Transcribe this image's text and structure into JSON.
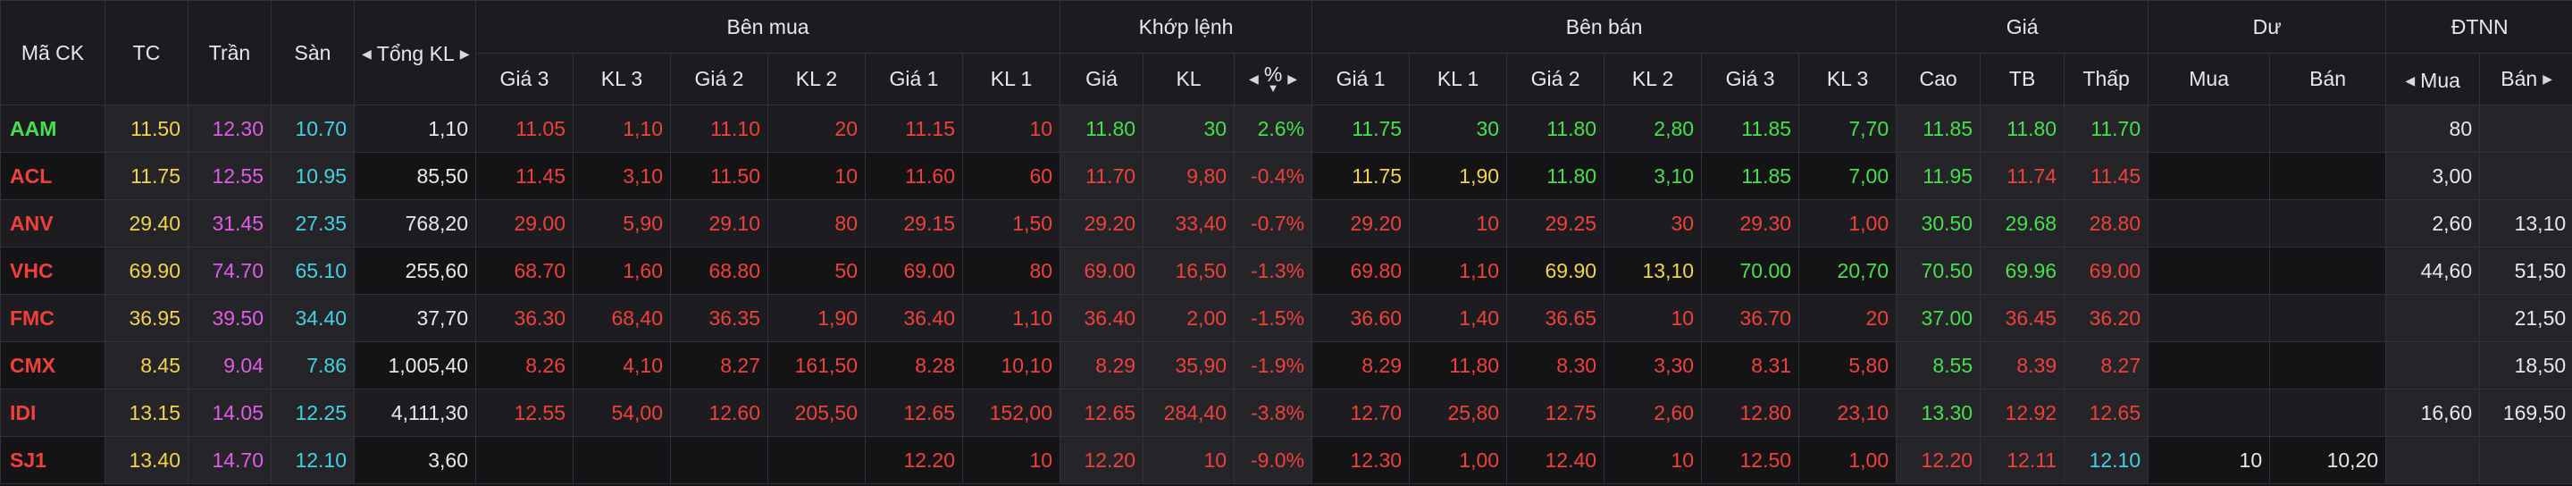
{
  "header": {
    "symbol": "Mã CK",
    "ref": "TC",
    "ceil": "Trần",
    "floor": "Sàn",
    "total_vol": "Tổng KL",
    "groups": {
      "buy": "Bên mua",
      "match": "Khớp lệnh",
      "sell": "Bên bán",
      "price": "Giá",
      "remain": "Dư",
      "foreign": "ĐTNN"
    },
    "buy_cols": [
      "Giá 3",
      "KL 3",
      "Giá 2",
      "KL 2",
      "Giá 1",
      "KL 1"
    ],
    "match_cols": [
      "Giá",
      "KL",
      "%"
    ],
    "sell_cols": [
      "Giá 1",
      "KL 1",
      "Giá 2",
      "KL 2",
      "Giá 3",
      "KL 3"
    ],
    "price_cols": [
      "Cao",
      "TB",
      "Thấp"
    ],
    "remain_cols": [
      "Mua",
      "Bán"
    ],
    "foreign_cols": [
      "Mua",
      "Bán"
    ]
  },
  "colors": {
    "up": "#45e04b",
    "down": "#f0403a",
    "ref": "#f3d34a",
    "ceil": "#e35be6",
    "floor": "#3fd3e2",
    "neutral": "#e8e8ea"
  },
  "rows": [
    {
      "sym": "AAM",
      "sc": "up",
      "tc": "11.50",
      "tran": "12.30",
      "san": "10.70",
      "tkl": "1,10",
      "b3p": "11.05",
      "b3v": "1,10",
      "b2p": "11.10",
      "b2v": "20",
      "b1p": "11.15",
      "b1v": "10",
      "bc": "down",
      "mp": "11.80",
      "mv": "30",
      "mpct": "2.6%",
      "mc": "up",
      "s1p": "11.75",
      "s1v": "30",
      "s1c": "up",
      "s2p": "11.80",
      "s2v": "2,80",
      "s2c": "up",
      "s3p": "11.85",
      "s3v": "7,70",
      "s3c": "up",
      "cao": "11.85",
      "caoc": "up",
      "tb": "11.80",
      "tbc": "up",
      "thap": "11.70",
      "thapc": "up",
      "dm": "",
      "db": "",
      "fm": "80",
      "fb": ""
    },
    {
      "sym": "ACL",
      "sc": "down",
      "tc": "11.75",
      "tran": "12.55",
      "san": "10.95",
      "tkl": "85,50",
      "b3p": "11.45",
      "b3v": "3,10",
      "b2p": "11.50",
      "b2v": "10",
      "b1p": "11.60",
      "b1v": "60",
      "bc": "down",
      "mp": "11.70",
      "mv": "9,80",
      "mpct": "-0.4%",
      "mc": "down",
      "s1p": "11.75",
      "s1v": "1,90",
      "s1c": "ref",
      "s2p": "11.80",
      "s2v": "3,10",
      "s2c": "up",
      "s3p": "11.85",
      "s3v": "7,00",
      "s3c": "up",
      "cao": "11.95",
      "caoc": "up",
      "tb": "11.74",
      "tbc": "down",
      "thap": "11.45",
      "thapc": "down",
      "dm": "",
      "db": "",
      "fm": "3,00",
      "fb": ""
    },
    {
      "sym": "ANV",
      "sc": "down",
      "tc": "29.40",
      "tran": "31.45",
      "san": "27.35",
      "tkl": "768,20",
      "b3p": "29.00",
      "b3v": "5,90",
      "b2p": "29.10",
      "b2v": "80",
      "b1p": "29.15",
      "b1v": "1,50",
      "bc": "down",
      "mp": "29.20",
      "mv": "33,40",
      "mpct": "-0.7%",
      "mc": "down",
      "s1p": "29.20",
      "s1v": "10",
      "s1c": "down",
      "s2p": "29.25",
      "s2v": "30",
      "s2c": "down",
      "s3p": "29.30",
      "s3v": "1,00",
      "s3c": "down",
      "cao": "30.50",
      "caoc": "up",
      "tb": "29.68",
      "tbc": "up",
      "thap": "28.80",
      "thapc": "down",
      "dm": "",
      "db": "",
      "fm": "2,60",
      "fb": "13,10"
    },
    {
      "sym": "VHC",
      "sc": "down",
      "tc": "69.90",
      "tran": "74.70",
      "san": "65.10",
      "tkl": "255,60",
      "b3p": "68.70",
      "b3v": "1,60",
      "b2p": "68.80",
      "b2v": "50",
      "b1p": "69.00",
      "b1v": "80",
      "bc": "down",
      "mp": "69.00",
      "mv": "16,50",
      "mpct": "-1.3%",
      "mc": "down",
      "s1p": "69.80",
      "s1v": "1,10",
      "s1c": "down",
      "s2p": "69.90",
      "s2v": "13,10",
      "s2c": "ref",
      "s3p": "70.00",
      "s3v": "20,70",
      "s3c": "up",
      "cao": "70.50",
      "caoc": "up",
      "tb": "69.96",
      "tbc": "up",
      "thap": "69.00",
      "thapc": "down",
      "dm": "",
      "db": "",
      "fm": "44,60",
      "fb": "51,50"
    },
    {
      "sym": "FMC",
      "sc": "down",
      "tc": "36.95",
      "tran": "39.50",
      "san": "34.40",
      "tkl": "37,70",
      "b3p": "36.30",
      "b3v": "68,40",
      "b2p": "36.35",
      "b2v": "1,90",
      "b1p": "36.40",
      "b1v": "1,10",
      "bc": "down",
      "mp": "36.40",
      "mv": "2,00",
      "mpct": "-1.5%",
      "mc": "down",
      "s1p": "36.60",
      "s1v": "1,40",
      "s1c": "down",
      "s2p": "36.65",
      "s2v": "10",
      "s2c": "down",
      "s3p": "36.70",
      "s3v": "20",
      "s3c": "down",
      "cao": "37.00",
      "caoc": "up",
      "tb": "36.45",
      "tbc": "down",
      "thap": "36.20",
      "thapc": "down",
      "dm": "",
      "db": "",
      "fm": "",
      "fb": "21,50"
    },
    {
      "sym": "CMX",
      "sc": "down",
      "tc": "8.45",
      "tran": "9.04",
      "san": "7.86",
      "tkl": "1,005,40",
      "b3p": "8.26",
      "b3v": "4,10",
      "b2p": "8.27",
      "b2v": "161,50",
      "b1p": "8.28",
      "b1v": "10,10",
      "bc": "down",
      "mp": "8.29",
      "mv": "35,90",
      "mpct": "-1.9%",
      "mc": "down",
      "s1p": "8.29",
      "s1v": "11,80",
      "s1c": "down",
      "s2p": "8.30",
      "s2v": "3,30",
      "s2c": "down",
      "s3p": "8.31",
      "s3v": "5,80",
      "s3c": "down",
      "cao": "8.55",
      "caoc": "up",
      "tb": "8.39",
      "tbc": "down",
      "thap": "8.27",
      "thapc": "down",
      "dm": "",
      "db": "",
      "fm": "",
      "fb": "18,50"
    },
    {
      "sym": "IDI",
      "sc": "down",
      "tc": "13.15",
      "tran": "14.05",
      "san": "12.25",
      "tkl": "4,111,30",
      "b3p": "12.55",
      "b3v": "54,00",
      "b2p": "12.60",
      "b2v": "205,50",
      "b1p": "12.65",
      "b1v": "152,00",
      "bc": "down",
      "mp": "12.65",
      "mv": "284,40",
      "mpct": "-3.8%",
      "mc": "down",
      "s1p": "12.70",
      "s1v": "25,80",
      "s1c": "down",
      "s2p": "12.75",
      "s2v": "2,60",
      "s2c": "down",
      "s3p": "12.80",
      "s3v": "23,10",
      "s3c": "down",
      "cao": "13.30",
      "caoc": "up",
      "tb": "12.92",
      "tbc": "down",
      "thap": "12.65",
      "thapc": "down",
      "dm": "",
      "db": "",
      "fm": "16,60",
      "fb": "169,50"
    },
    {
      "sym": "SJ1",
      "sc": "down",
      "tc": "13.40",
      "tran": "14.70",
      "san": "12.10",
      "tkl": "3,60",
      "b3p": "",
      "b3v": "",
      "b2p": "",
      "b2v": "",
      "b1p": "12.20",
      "b1v": "10",
      "bc": "down",
      "mp": "12.20",
      "mv": "10",
      "mpct": "-9.0%",
      "mc": "down",
      "s1p": "12.30",
      "s1v": "1,00",
      "s1c": "down",
      "s2p": "12.40",
      "s2v": "10",
      "s2c": "down",
      "s3p": "12.50",
      "s3v": "1,00",
      "s3c": "down",
      "cao": "12.20",
      "caoc": "down",
      "tb": "12.11",
      "tbc": "down",
      "thap": "12.10",
      "thapc": "floor",
      "dm": "10",
      "db": "10,20",
      "fm": "",
      "fb": ""
    }
  ]
}
